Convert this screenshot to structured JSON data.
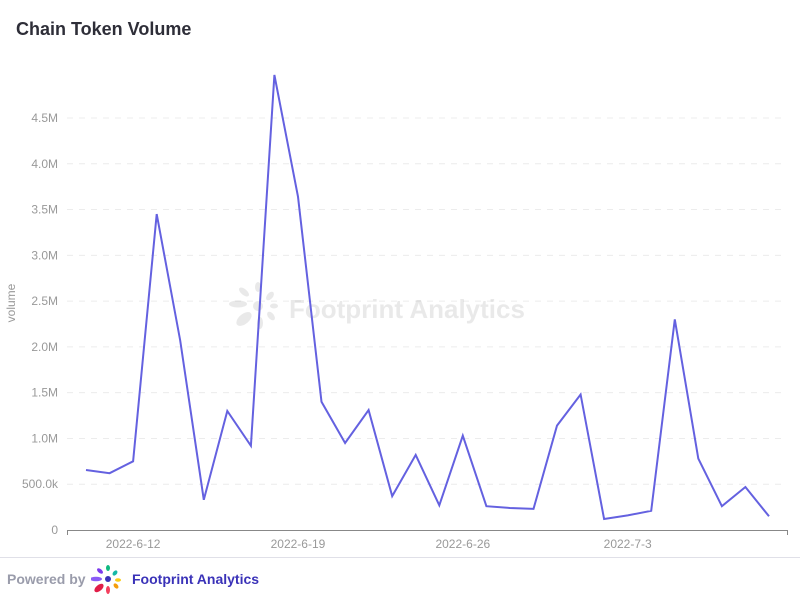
{
  "chart_data": {
    "type": "line",
    "title": "Chain Token Volume",
    "xlabel": "",
    "ylabel": "volume",
    "x": [
      "2022-6-10",
      "2022-6-11",
      "2022-6-12",
      "2022-6-13",
      "2022-6-14",
      "2022-6-15",
      "2022-6-16",
      "2022-6-17",
      "2022-6-18",
      "2022-6-19",
      "2022-6-20",
      "2022-6-21",
      "2022-6-22",
      "2022-6-23",
      "2022-6-24",
      "2022-6-25",
      "2022-6-26",
      "2022-6-27",
      "2022-6-28",
      "2022-6-29",
      "2022-6-30",
      "2022-7-1",
      "2022-7-2",
      "2022-7-3",
      "2022-7-4",
      "2022-7-5",
      "2022-7-6",
      "2022-7-7",
      "2022-7-8",
      "2022-7-9"
    ],
    "series": [
      {
        "name": "volume",
        "color": "#6461e0",
        "values": [
          655000,
          620000,
          750000,
          3450000,
          2070000,
          330000,
          1300000,
          920000,
          4970000,
          3640000,
          1400000,
          950000,
          1310000,
          370000,
          820000,
          270000,
          1030000,
          260000,
          240000,
          230000,
          1140000,
          1480000,
          120000,
          160000,
          210000,
          2300000,
          780000,
          260000,
          470000,
          150000
        ]
      }
    ],
    "x_ticks": [
      "2022-6-12",
      "2022-6-19",
      "2022-6-26",
      "2022-7-3"
    ],
    "x_tick_indices": [
      2,
      9,
      16,
      23
    ],
    "y_ticks": [
      0,
      500000,
      1000000,
      1500000,
      2000000,
      2500000,
      3000000,
      3500000,
      4000000,
      4500000
    ],
    "y_tick_labels": [
      "0",
      "500.0k",
      "1.0M",
      "1.5M",
      "2.0M",
      "2.5M",
      "3.0M",
      "3.5M",
      "4.0M",
      "4.5M"
    ],
    "ylim": [
      0,
      5000000
    ],
    "grid": true,
    "legend": "none"
  },
  "watermark": "Footprint Analytics",
  "footer": {
    "powered_by": "Powered by",
    "brand": "Footprint Analytics"
  }
}
